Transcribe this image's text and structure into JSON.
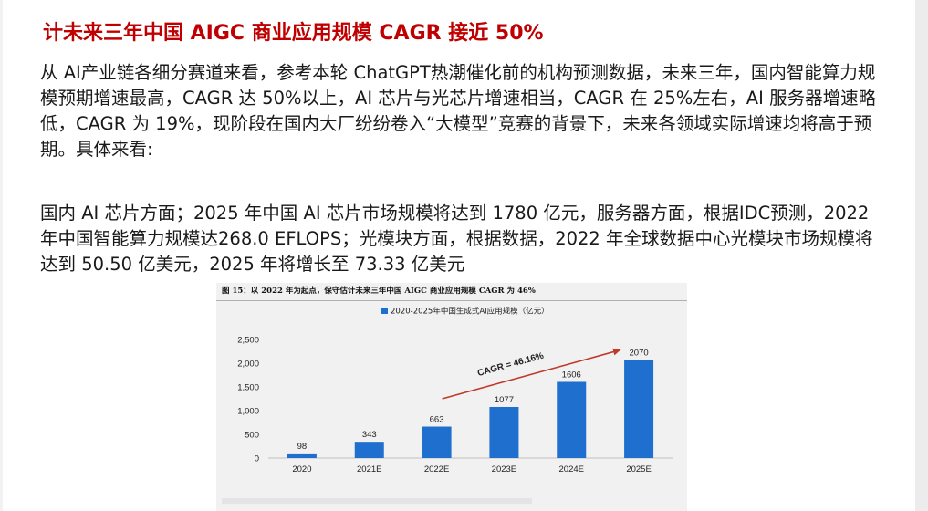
{
  "title": "计未来三年中国 AIGC 商业应用规模 CAGR 接近 50%",
  "paragraph1": "从 AI产业链各细分赛道来看，参考本轮 ChatGPT热潮催化前的机构预测数据，未来三年，国内智能算力规模预期增速最高，CAGR 达 50%以上，AI 芯片与光芯片增速相当，CAGR 在 25%左右，AI 服务器增速略低，CAGR 为 19%，现阶段在国内大厂纷纷卷入“大模型”竞赛的背景下，未来各领域实际增速均将高于预期。具体来看:",
  "paragraph2": "国内 AI 芯片方面；2025 年中国 AI 芯片市场规模将达到 1780 亿元，服务器方面，根据IDC预测，2022 年中国智能算力规模达268.0 EFLOPS；光模块方面，根据数据，2022 年全球数据中心光模块市场规模将达到 50.50 亿美元，2025 年将增长至 73.33 亿美元",
  "figure": {
    "caption": "图 15：以 2022 年为起点，保守估计未来三年中国 AIGC 商业应用规模 CAGR 为 46%"
  },
  "chart_data": {
    "type": "bar",
    "categories": [
      "2020",
      "2021E",
      "2022E",
      "2023E",
      "2024E",
      "2025E"
    ],
    "series": [
      {
        "name": "2020-2025年中国生成式AI应用规模（亿元）",
        "values": [
          98,
          343,
          663,
          1077,
          1606,
          2070
        ]
      }
    ],
    "data_labels": [
      "98",
      "343",
      "663",
      "1077",
      "1606",
      "2070"
    ],
    "yticks": [
      "0",
      "500",
      "1,000",
      "1,500",
      "2,000",
      "2,500"
    ],
    "ylim": [
      0,
      2500
    ],
    "annotation": "CAGR = 46.16%",
    "legend_position": "top-center",
    "grid": false,
    "colors": {
      "bar": "#1f6fce",
      "arrow": "#c0392b",
      "text": "#222222"
    }
  }
}
